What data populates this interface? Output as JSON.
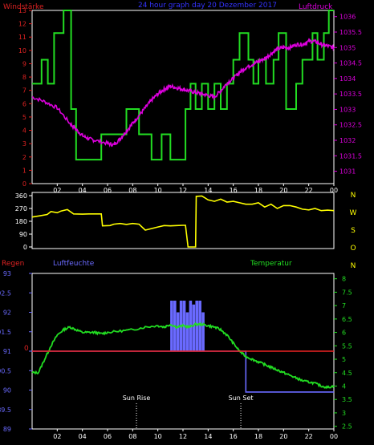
{
  "header": {
    "left_title": "Windstärke",
    "center_title": "24 hour graph day  20 Dezember 2017",
    "right_title": "Luftdruck"
  },
  "colors": {
    "background": "#000000",
    "frame": "#ffffff",
    "wind_speed": "#22dd22",
    "pressure": "#dd00dd",
    "wind_dir": "#ffff00",
    "humidity": "#6a6aff",
    "temperature": "#22dd22",
    "rain": "#ee2222",
    "left_axis_1": "#dd2222",
    "right_axis_1": "#dd00dd",
    "title_blue": "#3333ff"
  },
  "hour_labels": [
    "02",
    "04",
    "06",
    "08",
    "10",
    "12",
    "14",
    "16",
    "18",
    "20",
    "22",
    "00"
  ],
  "chart_data": [
    {
      "type": "line",
      "title": "24 hour graph day  20 Dezember 2017",
      "ylabel_left": "Windstärke",
      "ylabel_right": "Luftdruck",
      "y_left_ticks": [
        "0",
        "1",
        "2",
        "3",
        "4",
        "5",
        "6",
        "7",
        "8",
        "9",
        "10",
        "11",
        "12",
        "13"
      ],
      "y_right_ticks": [
        "1031",
        "1031.5",
        "1032",
        "1032.5",
        "1033",
        "1033.5",
        "1034",
        "1034.5",
        "1035",
        "1035.5",
        "1036"
      ],
      "ylim_left": [
        0,
        13
      ],
      "ylim_right": [
        1030.6,
        1036.2
      ],
      "series": [
        {
          "name": "Windstärke",
          "step_x": [
            0.0,
            0.75,
            0.75,
            1.25,
            1.25,
            1.75,
            1.75,
            2.5,
            2.5,
            3.1,
            3.1,
            3.5,
            3.5,
            4.3,
            4.3,
            5.5,
            5.5,
            7.5,
            7.5,
            8.5,
            8.5,
            9.5,
            9.5,
            10.3,
            10.3,
            11.0,
            11.0,
            12.2,
            12.2,
            12.6,
            12.6,
            13.0,
            13.0,
            13.5,
            13.5,
            14.0,
            14.0,
            14.5,
            14.5,
            15.0,
            15.0,
            15.5,
            15.5,
            16.0,
            16.0,
            16.5,
            16.5,
            17.2,
            17.2,
            17.6,
            17.6,
            18.0,
            18.0,
            18.6,
            18.6,
            19.2,
            19.2,
            19.6,
            19.6,
            20.2,
            20.2,
            21.0,
            21.0,
            21.5,
            21.5,
            22.3,
            22.3,
            22.7,
            22.7,
            23.2,
            23.2,
            23.6,
            23.6,
            24.0
          ],
          "step_y": [
            7.5,
            7.5,
            9.3,
            9.3,
            7.5,
            7.5,
            11.3,
            11.3,
            13,
            13,
            5.6,
            5.6,
            1.8,
            1.8,
            1.8,
            1.8,
            3.7,
            3.7,
            5.6,
            5.6,
            3.7,
            3.7,
            1.8,
            1.8,
            3.7,
            3.7,
            1.8,
            1.8,
            5.6,
            5.6,
            7.5,
            7.5,
            5.6,
            5.6,
            7.5,
            7.5,
            5.6,
            5.6,
            7.5,
            7.5,
            5.6,
            5.6,
            7.5,
            7.5,
            9.3,
            9.3,
            11.3,
            11.3,
            9.3,
            9.3,
            7.5,
            7.5,
            9.3,
            9.3,
            7.5,
            7.5,
            9.3,
            9.3,
            11.3,
            11.3,
            5.6,
            5.6,
            7.5,
            7.5,
            9.3,
            9.3,
            11.3,
            11.3,
            9.3,
            9.3,
            11.3,
            11.3,
            13,
            13
          ]
        },
        {
          "name": "Luftdruck",
          "x": [
            0,
            1,
            2,
            3,
            3.5,
            4,
            4.5,
            5,
            6,
            6.5,
            7,
            7.5,
            8,
            8.5,
            9,
            9.5,
            10,
            10.5,
            11,
            11.5,
            12,
            12.5,
            13,
            13.5,
            14,
            14.5,
            15,
            15.5,
            16,
            16.5,
            17,
            17.5,
            18,
            18.5,
            19,
            19.5,
            20,
            20.5,
            21,
            21.5,
            22,
            22.5,
            23,
            23.5,
            24
          ],
          "y": [
            1033.4,
            1033.25,
            1033.05,
            1032.55,
            1032.35,
            1032.15,
            1032.05,
            1032.0,
            1031.9,
            1031.85,
            1032.05,
            1032.3,
            1032.55,
            1032.8,
            1033.05,
            1033.3,
            1033.5,
            1033.65,
            1033.75,
            1033.7,
            1033.65,
            1033.6,
            1033.55,
            1033.5,
            1033.45,
            1033.4,
            1033.6,
            1033.85,
            1034.0,
            1034.2,
            1034.35,
            1034.45,
            1034.55,
            1034.65,
            1034.8,
            1034.95,
            1035.0,
            1035.0,
            1035.1,
            1035.1,
            1035.2,
            1035.2,
            1035.1,
            1035.05,
            1035.0
          ]
        }
      ]
    },
    {
      "type": "line",
      "y_left_ticks": [
        "0",
        "90",
        "180",
        "270",
        "360"
      ],
      "y_right_ticks": [
        "N",
        "W",
        "S",
        "O",
        "N"
      ],
      "ylim": [
        0,
        360
      ],
      "series": [
        {
          "name": "Windrichtung",
          "x": [
            0,
            0.6,
            1.2,
            1.5,
            2,
            2.3,
            2.8,
            3.3,
            4.0,
            4.5,
            5.5,
            5.6,
            6.2,
            6.5,
            7.0,
            7.5,
            8.0,
            8.5,
            9.0,
            10.0,
            10.5,
            11.0,
            11.5,
            12.0,
            12.2,
            12.4,
            12.9,
            13.0,
            13.05,
            13.5,
            14.0,
            14.5,
            15.0,
            15.5,
            16.0,
            16.5,
            17.0,
            17.5,
            18.0,
            18.5,
            19.0,
            19.5,
            20.0,
            20.5,
            21.0,
            21.5,
            22.0,
            22.5,
            23.0,
            23.5,
            24.0
          ],
          "y": [
            210,
            218,
            228,
            248,
            240,
            252,
            262,
            232,
            230,
            232,
            232,
            148,
            150,
            160,
            165,
            158,
            165,
            160,
            118,
            140,
            150,
            148,
            150,
            152,
            152,
            0,
            0,
            0,
            355,
            358,
            330,
            320,
            335,
            315,
            320,
            310,
            300,
            300,
            310,
            280,
            300,
            270,
            290,
            290,
            280,
            265,
            260,
            270,
            255,
            258,
            255
          ]
        }
      ]
    },
    {
      "type": "line",
      "title_left": "Regen",
      "title_mid": "Luftfeuchte",
      "title_right": "Temperatur",
      "y_left_ticks": [
        "89",
        "89.5",
        "90",
        "90.5",
        "91",
        "91.5",
        "92",
        "92.5",
        "93"
      ],
      "y_right_ticks": [
        "2.5",
        "3",
        "3.5",
        "4",
        "4.5",
        "5",
        "5.5",
        "6",
        "6.5",
        "7",
        "7.5",
        "8"
      ],
      "red_zero_label": "0",
      "ylim_left": [
        89,
        93
      ],
      "ylim_right": [
        2.4,
        8.2
      ],
      "series": [
        {
          "name": "Temperatur",
          "x": [
            0,
            0.5,
            1.0,
            1.5,
            2.0,
            2.5,
            3.0,
            3.5,
            4.0,
            4.5,
            5.0,
            5.5,
            6.0,
            7.0,
            8.0,
            9.0,
            10.0,
            10.5,
            11.0,
            11.5,
            12.0,
            12.5,
            13.0,
            13.5,
            14.0,
            14.5,
            15.0,
            15.5,
            16.0,
            16.5,
            17.0,
            17.5,
            18.0,
            18.5,
            19.0,
            19.5,
            20.0,
            20.5,
            21.0,
            21.5,
            22.0,
            22.5,
            23.0,
            23.5,
            24.0
          ],
          "y": [
            4.5,
            4.5,
            5.0,
            5.5,
            5.9,
            6.1,
            6.2,
            6.1,
            6.0,
            6.0,
            6.0,
            5.95,
            6.0,
            6.05,
            6.1,
            6.2,
            6.25,
            6.2,
            6.3,
            6.2,
            6.25,
            6.2,
            6.3,
            6.3,
            6.25,
            6.2,
            6.1,
            5.9,
            5.6,
            5.3,
            5.1,
            5.0,
            4.9,
            4.8,
            4.7,
            4.6,
            4.5,
            4.4,
            4.3,
            4.2,
            4.15,
            4.1,
            4.0,
            3.95,
            4.0
          ]
        },
        {
          "name": "Luftfeuchte",
          "x": [
            0,
            17.0,
            17.0,
            24.0
          ],
          "y": [
            91,
            91,
            89.95,
            89.95
          ]
        },
        {
          "name": "Regen",
          "x": [
            0,
            24
          ],
          "y": [
            91,
            91
          ]
        }
      ],
      "bars_x": [
        11.1,
        11.35,
        11.6,
        11.85,
        12.1,
        12.35,
        12.6,
        12.85,
        13.1,
        13.35,
        13.6
      ],
      "bars_top": [
        92.3,
        92.3,
        92.0,
        92.3,
        92.3,
        92.0,
        92.3,
        92.2,
        92.3,
        92.3,
        92.0
      ],
      "bars_bottom": 91.0,
      "annotations": [
        {
          "label": "Sun Rise",
          "x": 8.3
        },
        {
          "label": "Sun Set",
          "x": 16.6
        }
      ]
    }
  ]
}
